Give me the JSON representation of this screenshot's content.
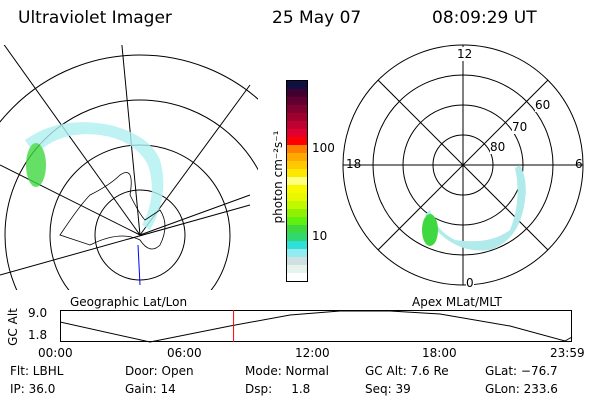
{
  "header": {
    "instrument": "Ultraviolet Imager",
    "date": "25 May 07",
    "time": "08:09:29 UT"
  },
  "colorbar": {
    "label": "photon cm⁻²s⁻¹",
    "ticks": [
      "100",
      "10"
    ],
    "colors": [
      "#ffffff",
      "#e6f2ec",
      "#d0e0e0",
      "#90ecf0",
      "#30e0d8",
      "#30d870",
      "#40d840",
      "#60f010",
      "#90f000",
      "#c0f800",
      "#e8f800",
      "#f8f800",
      "#ffff80",
      "#ffe800",
      "#ffc800",
      "#ffa800",
      "#ff8000",
      "#ff0000",
      "#e00030",
      "#c00030",
      "#a00030",
      "#800030",
      "#600030",
      "#400030",
      "#101040"
    ]
  },
  "left_map": {
    "caption": "Geographic Lat/Lon"
  },
  "right_map": {
    "caption": "Apex MLat/MLT",
    "mlt_labels": [
      "12",
      "18",
      "6",
      "0"
    ],
    "lat_labels": [
      "60",
      "70",
      "80"
    ]
  },
  "altitude_plot": {
    "ylabel": "GC Alt",
    "yticks": [
      "9.0",
      "1.8"
    ],
    "xticks": [
      "00:00",
      "06:00",
      "12:00",
      "18:00",
      "23:59"
    ],
    "current_time_fraction": 0.339,
    "marker_color": "#ff0000"
  },
  "info": {
    "flt": "Flt: LBHL",
    "door": "Door: Open",
    "mode": "Mode: Normal",
    "gcalt": "GC Alt: 7.6 Re",
    "glat": "GLat: −76.7",
    "ip": "IP: 36.0",
    "gain": "Gain: 14",
    "dsp": "Dsp:     1.8",
    "seq": "Seq: 39",
    "glon": "GLon: 233.6"
  }
}
